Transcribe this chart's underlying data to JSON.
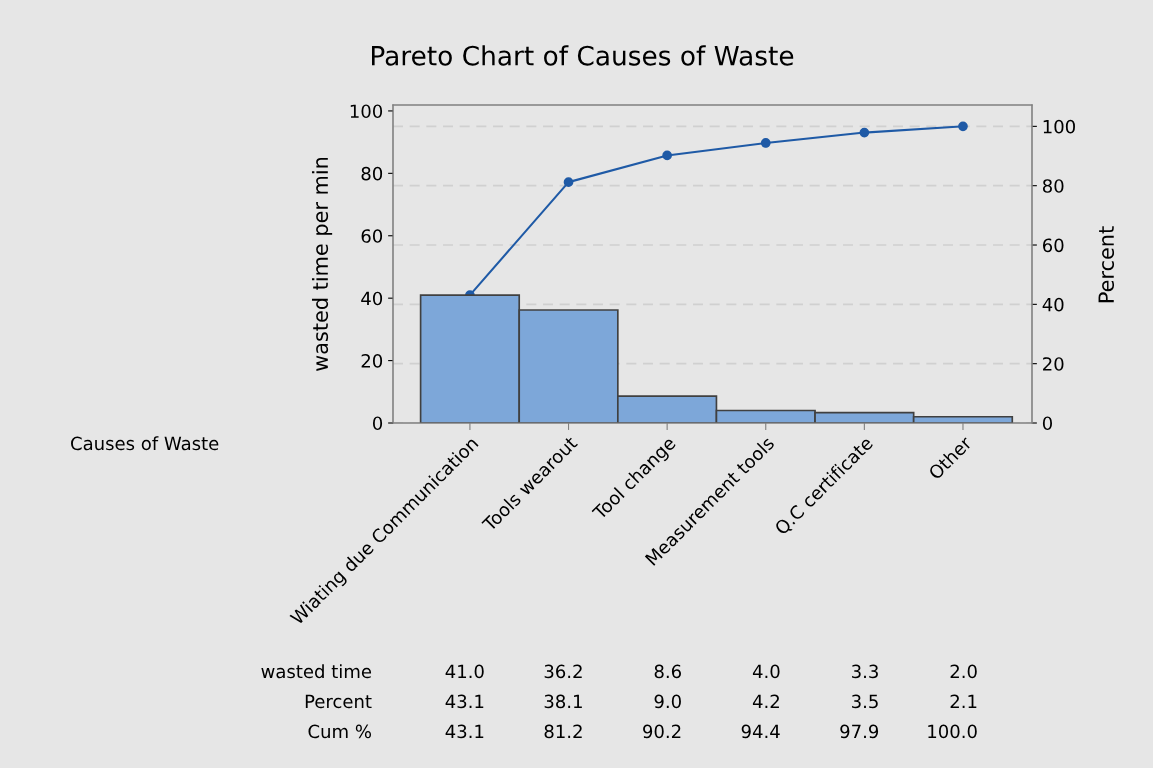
{
  "chart_data": {
    "type": "bar",
    "title": "Pareto Chart of Causes of Waste",
    "xlabel": "Causes of Waste",
    "ylabel": "wasted time per min",
    "y2label": "Percent",
    "categories": [
      "Wiating due Communication",
      "Tools wearout",
      "Tool change",
      "Measurement tools",
      "Q.C certificate",
      "Other"
    ],
    "series": [
      {
        "color": "#7da7d9",
        "values": [
          41.0,
          36.2,
          8.6,
          4.0,
          3.3,
          2.0
        ],
        "value_labels": [
          "41.0",
          "36.2",
          "8.6",
          "4.0",
          "3.3",
          "2.0"
        ]
      },
      {
        "type": "line",
        "axis": "y2",
        "color": "#1f5aa6",
        "values": [
          43.1,
          81.2,
          90.2,
          94.4,
          97.9,
          100.0
        ],
        "value_labels": [
          "43.1",
          "81.2",
          "90.2",
          "94.4",
          "97.9",
          "100.0"
        ]
      }
    ],
    "ylim": [
      0,
      101.9
    ],
    "yticks": [
      0,
      20,
      40,
      60,
      80,
      100
    ],
    "y2lim": [
      0,
      107.2
    ],
    "y2ticks": [
      0,
      20,
      40,
      60,
      80,
      100
    ],
    "annotations": [
      "wasted time",
      "Percent",
      "Cum %",
      "43.1",
      "38.1",
      "9.0",
      "4.2",
      "3.5",
      "2.1"
    ],
    "grid": "y",
    "marker": "circle",
    "line_style": "solid"
  }
}
